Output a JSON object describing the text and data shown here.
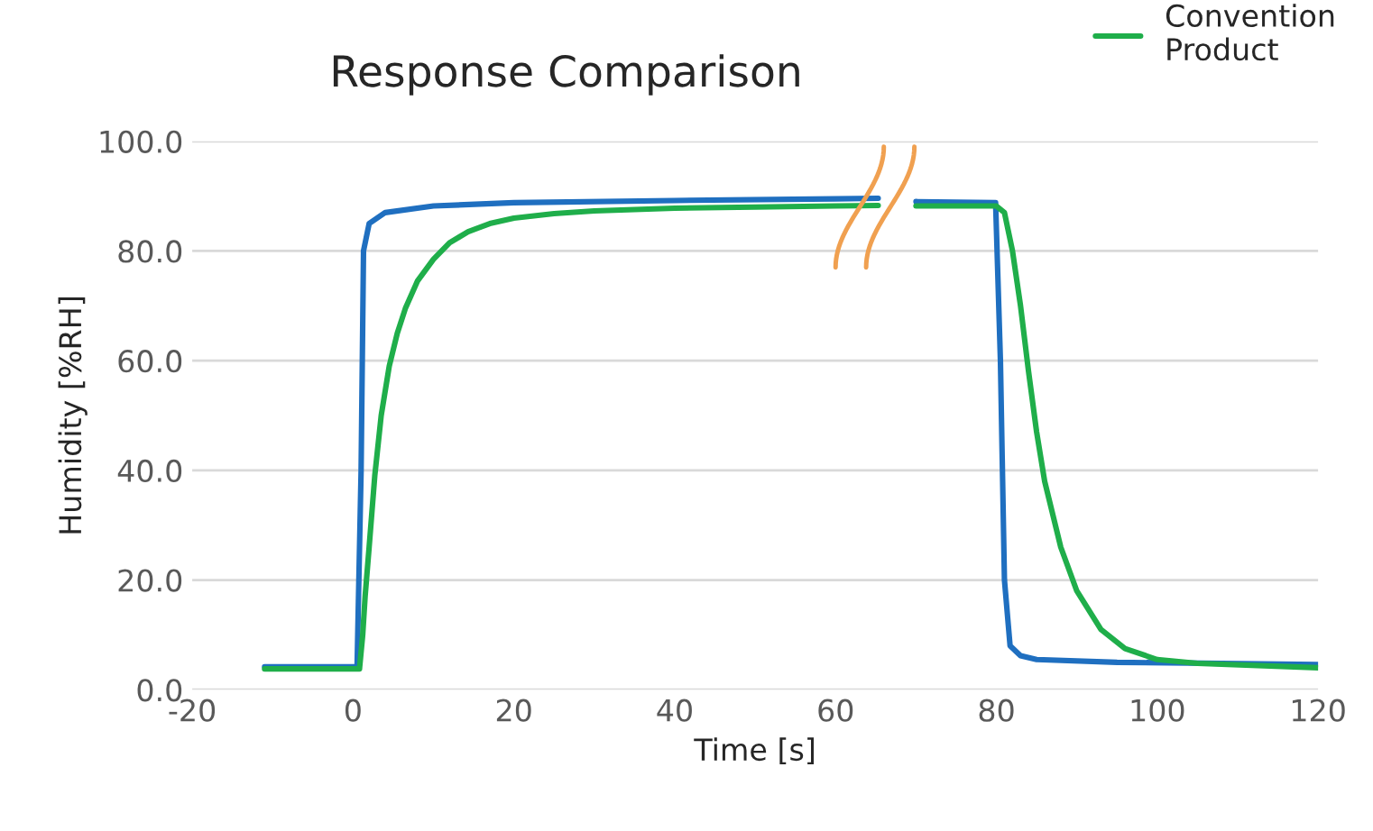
{
  "chart_data": {
    "type": "line",
    "title": "Response Comparison",
    "xlabel": "Time [s]",
    "ylabel": "Humidity [%RH]",
    "xlim": [
      -20,
      120
    ],
    "xticks": [
      -20,
      0,
      20,
      40,
      60,
      80,
      100,
      120
    ],
    "ylim": [
      0,
      100
    ],
    "yticks": [
      {
        "value": 0,
        "label": "0.0"
      },
      {
        "value": 20,
        "label": "20.0"
      },
      {
        "value": 40,
        "label": "40.0"
      },
      {
        "value": 60,
        "label": "60.0"
      },
      {
        "value": 80,
        "label": "80.0"
      },
      {
        "value": 100,
        "label": "100.0"
      }
    ],
    "grid": "y",
    "legend": "top right",
    "marker": "none",
    "line_style": "solid",
    "series": [
      {
        "color": "#1f6fc0",
        "x": [
          -11,
          0.5,
          1.0,
          1.3,
          2,
          4,
          10,
          20,
          40,
          60,
          65.3,
          67,
          70,
          79.9,
          80.5,
          81,
          81.7,
          83,
          85,
          95,
          120
        ],
        "values": [
          4.2,
          4.2,
          40,
          80,
          85,
          87,
          88.2,
          88.8,
          89.2,
          89.5,
          89.6,
          null,
          89.0,
          88.8,
          60,
          20,
          8,
          6.2,
          5.5,
          5.0,
          4.6
        ]
      },
      {
        "name": "Convention\nProduct",
        "color": "#1fae4a",
        "x": [
          -11,
          0.8,
          1.2,
          1.5,
          2,
          2.7,
          3.5,
          4.5,
          5.5,
          6.5,
          8,
          10,
          12,
          14.3,
          17,
          20,
          25,
          30,
          40,
          50,
          60,
          65.3,
          67,
          70,
          80,
          81,
          82,
          83,
          84,
          85,
          86,
          88,
          90,
          93,
          96,
          100,
          105,
          120
        ],
        "values": [
          3.8,
          3.8,
          10,
          17,
          26,
          39,
          50,
          59,
          65,
          69.5,
          74.5,
          78.5,
          81.5,
          83.5,
          85,
          86,
          86.8,
          87.3,
          87.8,
          88,
          88.2,
          88.3,
          null,
          88.2,
          88.2,
          87,
          80,
          70,
          58,
          47,
          38,
          26,
          18,
          11,
          7.5,
          5.5,
          4.8,
          4.0
        ]
      }
    ]
  }
}
